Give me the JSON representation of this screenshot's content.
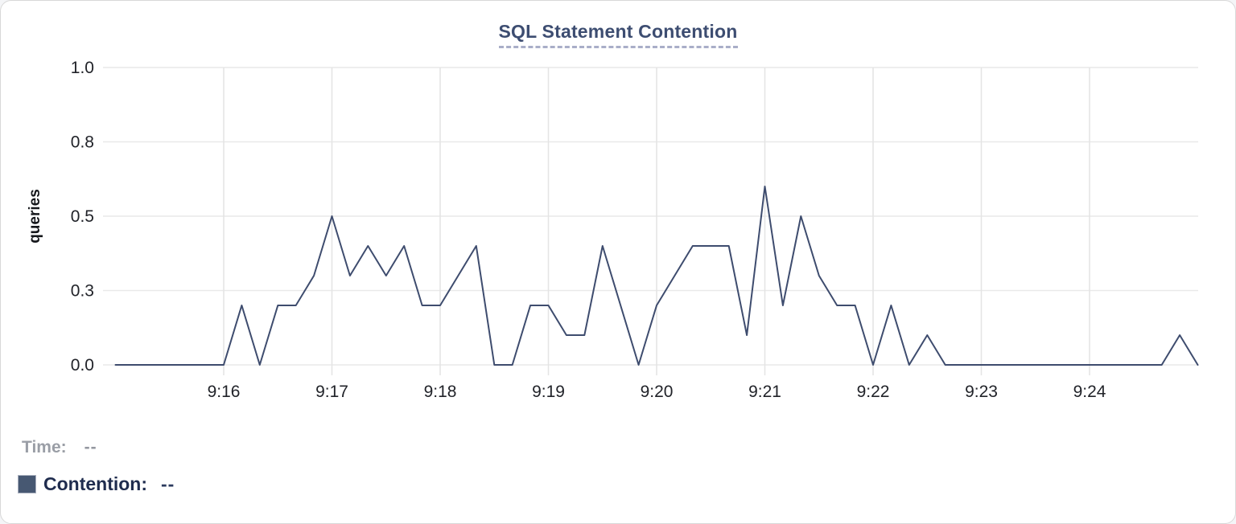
{
  "chart": {
    "title": "SQL Statement Contention"
  },
  "readout": {
    "time_label": "Time:",
    "time_value": "--",
    "contention_label": "Contention:",
    "contention_value": "--"
  },
  "chart_data": {
    "type": "line",
    "title": "SQL Statement Contention",
    "xlabel": "",
    "ylabel": "queries",
    "ylim": [
      0,
      1
    ],
    "grid": true,
    "legend_position": "bottom-left",
    "y_ticks": [
      {
        "value": 0,
        "label": "0.0"
      },
      {
        "value": 0.25,
        "label": "0.3"
      },
      {
        "value": 0.5,
        "label": "0.5"
      },
      {
        "value": 0.75,
        "label": "0.8"
      },
      {
        "value": 1.0,
        "label": "1.0"
      }
    ],
    "x_start": "9:15:00",
    "x_end": "9:25:00",
    "x_interval_seconds": 10,
    "x_ticks": [
      {
        "minute_offset": 1,
        "label": "9:16"
      },
      {
        "minute_offset": 2,
        "label": "9:17"
      },
      {
        "minute_offset": 3,
        "label": "9:18"
      },
      {
        "minute_offset": 4,
        "label": "9:19"
      },
      {
        "minute_offset": 5,
        "label": "9:20"
      },
      {
        "minute_offset": 6,
        "label": "9:21"
      },
      {
        "minute_offset": 7,
        "label": "9:22"
      },
      {
        "minute_offset": 8,
        "label": "9:23"
      },
      {
        "minute_offset": 9,
        "label": "9:24"
      }
    ],
    "series": [
      {
        "name": "Contention",
        "unit": "queries",
        "color": "#3e4c6e",
        "values": [
          0,
          0,
          0,
          0,
          0,
          0,
          0,
          0.2,
          0,
          0.2,
          0.2,
          0.3,
          0.5,
          0.3,
          0.4,
          0.3,
          0.4,
          0.2,
          0.2,
          0.3,
          0.4,
          0,
          0,
          0.2,
          0.2,
          0.1,
          0.1,
          0.4,
          0.2,
          0,
          0.2,
          0.3,
          0.4,
          0.4,
          0.4,
          0.1,
          0.6,
          0.2,
          0.5,
          0.3,
          0.2,
          0.2,
          0,
          0.2,
          0,
          0.1,
          0,
          0,
          0,
          0,
          0,
          0,
          0,
          0,
          0,
          0,
          0,
          0,
          0,
          0.1,
          0
        ]
      }
    ]
  },
  "colors": {
    "line": "#3e4c6e",
    "grid_horizontal": "#e9e9e9",
    "grid_vertical": "#e4e4e4",
    "tick_text": "#212329",
    "title": "#3d4d71",
    "title_underline": "#a9aec8",
    "legend_swatch": "#475872",
    "contention_text": "#1f2c4e",
    "time_text": "#9a9ea6"
  }
}
